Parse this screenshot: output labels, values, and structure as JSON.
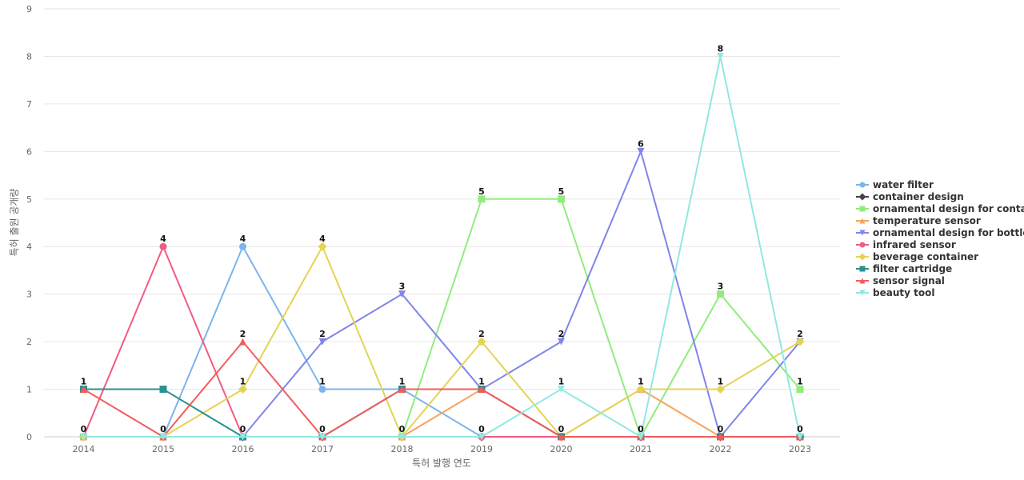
{
  "chart_data": {
    "type": "line",
    "title": "",
    "xlabel": "특허 발행 연도",
    "ylabel": "특허 출원 공개량",
    "x": [
      "2014",
      "2015",
      "2016",
      "2017",
      "2018",
      "2019",
      "2020",
      "2021",
      "2022",
      "2023"
    ],
    "ylim": [
      0,
      9
    ],
    "yticks": [
      0,
      1,
      2,
      3,
      4,
      5,
      6,
      7,
      8,
      9
    ],
    "grid": true,
    "legend_position": "right",
    "series": [
      {
        "name": "water filter",
        "color": "#7cb5ec",
        "marker": "circle",
        "values": [
          0,
          0,
          4,
          1,
          1,
          0,
          0,
          0,
          0,
          0
        ]
      },
      {
        "name": "container design",
        "color": "#434348",
        "marker": "diamond",
        "values": [
          0,
          0,
          0,
          0,
          0,
          0,
          0,
          0,
          0,
          0
        ]
      },
      {
        "name": "ornamental design for conta...",
        "color": "#90ed7d",
        "marker": "square",
        "values": [
          0,
          0,
          0,
          0,
          0,
          5,
          5,
          0,
          3,
          1
        ]
      },
      {
        "name": "temperature sensor",
        "color": "#f7a35c",
        "marker": "triangle",
        "values": [
          0,
          0,
          0,
          0,
          0,
          1,
          0,
          1,
          0,
          0
        ]
      },
      {
        "name": "ornamental design for bottle",
        "color": "#8085e9",
        "marker": "triangle-down",
        "values": [
          0,
          0,
          0,
          2,
          3,
          1,
          2,
          6,
          0,
          2
        ]
      },
      {
        "name": "infrared sensor",
        "color": "#f15c80",
        "marker": "circle",
        "values": [
          0,
          4,
          0,
          0,
          0,
          0,
          0,
          0,
          0,
          0
        ]
      },
      {
        "name": "beverage container",
        "color": "#e4d354",
        "marker": "diamond",
        "values": [
          0,
          0,
          1,
          4,
          0,
          2,
          0,
          1,
          1,
          2
        ]
      },
      {
        "name": "filter cartridge",
        "color": "#2b908f",
        "marker": "square",
        "values": [
          1,
          1,
          0,
          0,
          1,
          1,
          0,
          0,
          0,
          0
        ]
      },
      {
        "name": "sensor signal",
        "color": "#f45b5b",
        "marker": "triangle",
        "values": [
          1,
          0,
          2,
          0,
          1,
          1,
          0,
          0,
          0,
          0
        ]
      },
      {
        "name": "beauty tool",
        "color": "#91e8e1",
        "marker": "triangle-down",
        "values": [
          0,
          0,
          0,
          0,
          0,
          0,
          1,
          0,
          8,
          0
        ]
      }
    ],
    "data_labels": [
      {
        "x": "2014",
        "upper": "1",
        "lower": "0"
      },
      {
        "x": "2015",
        "upper": "4",
        "lower": "0"
      },
      {
        "x": "2016",
        "upper": "4",
        "mid": "2",
        "mid2": "1",
        "lower": "0"
      },
      {
        "x": "2017",
        "upper": "4",
        "mid": "2",
        "mid2": "1",
        "lower": "0"
      },
      {
        "x": "2018",
        "upper": "3",
        "mid2": "1",
        "lower": "0"
      },
      {
        "x": "2019",
        "upper": "5",
        "mid": "2",
        "mid2": "1",
        "lower": "0"
      },
      {
        "x": "2020",
        "upper": "5",
        "mid": "2",
        "mid2": "1",
        "lower": "0"
      },
      {
        "x": "2021",
        "upper": "6",
        "mid2": "1",
        "lower": "0"
      },
      {
        "x": "2022",
        "upper": "8",
        "mid": "3",
        "mid2": "1",
        "lower": "0"
      },
      {
        "x": "2023",
        "mid": "2",
        "mid2": "1",
        "lower": "0"
      }
    ]
  }
}
